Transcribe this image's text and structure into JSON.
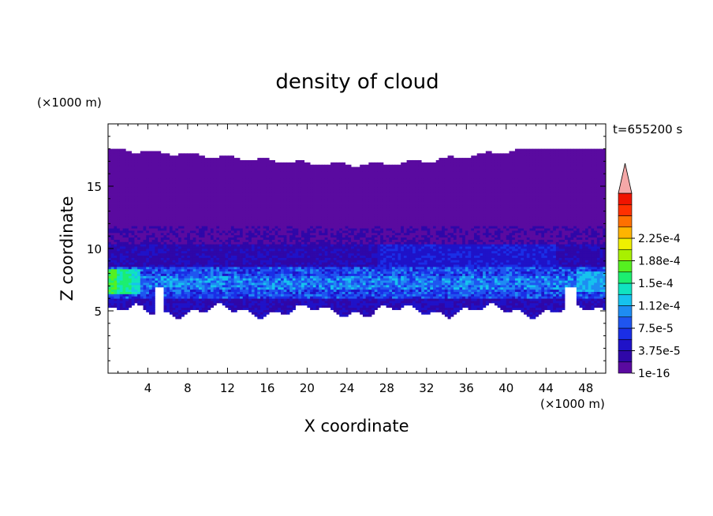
{
  "chart_data": {
    "type": "heatmap",
    "title": "density of cloud",
    "xlabel": "X coordinate",
    "ylabel": "Z coordinate",
    "x_unit": "(×1000 m)",
    "y_unit": "(×1000 m)",
    "time_label": "t=655200 s",
    "xlim": [
      0,
      50
    ],
    "ylim": [
      0,
      20
    ],
    "x_ticks": [
      4,
      8,
      12,
      16,
      20,
      24,
      28,
      32,
      36,
      40,
      44,
      48
    ],
    "y_ticks": [
      5,
      10,
      15
    ],
    "colorbar": {
      "levels": [
        1e-16,
        1.875e-05,
        3.75e-05,
        5.625e-05,
        7.5e-05,
        9.375e-05,
        0.0001125,
        0.00013125,
        0.00015,
        0.00016875,
        0.0001875,
        0.00020625,
        0.000225,
        0.00024375
      ],
      "tick_labels": [
        "1e-16",
        "3.75e-5",
        "7.5e-5",
        "1.12e-4",
        "1.5e-4",
        "1.88e-4",
        "2.25e-4"
      ],
      "colors": [
        "#5a0aa0",
        "#2f07a8",
        "#1f12c8",
        "#1a2ee6",
        "#1f55f0",
        "#1e8cf2",
        "#16c2ee",
        "#10e3c0",
        "#1cee70",
        "#55f020",
        "#a8f000",
        "#f0f000",
        "#ffb400",
        "#ff7000",
        "#ff3000",
        "#f01400"
      ],
      "overflow_color": "#f5a8a8"
    },
    "field_summary": {
      "cloud_top_km": [
        17.0,
        18.0
      ],
      "cloud_base_km": [
        4.8,
        5.5
      ],
      "bright_layer_km": [
        6.0,
        8.5
      ],
      "max_density_region_x_km": [
        0,
        3
      ],
      "clear_gaps_x_km": [
        [
          4.8,
          5.5
        ],
        [
          46.0,
          47.0
        ]
      ]
    }
  }
}
